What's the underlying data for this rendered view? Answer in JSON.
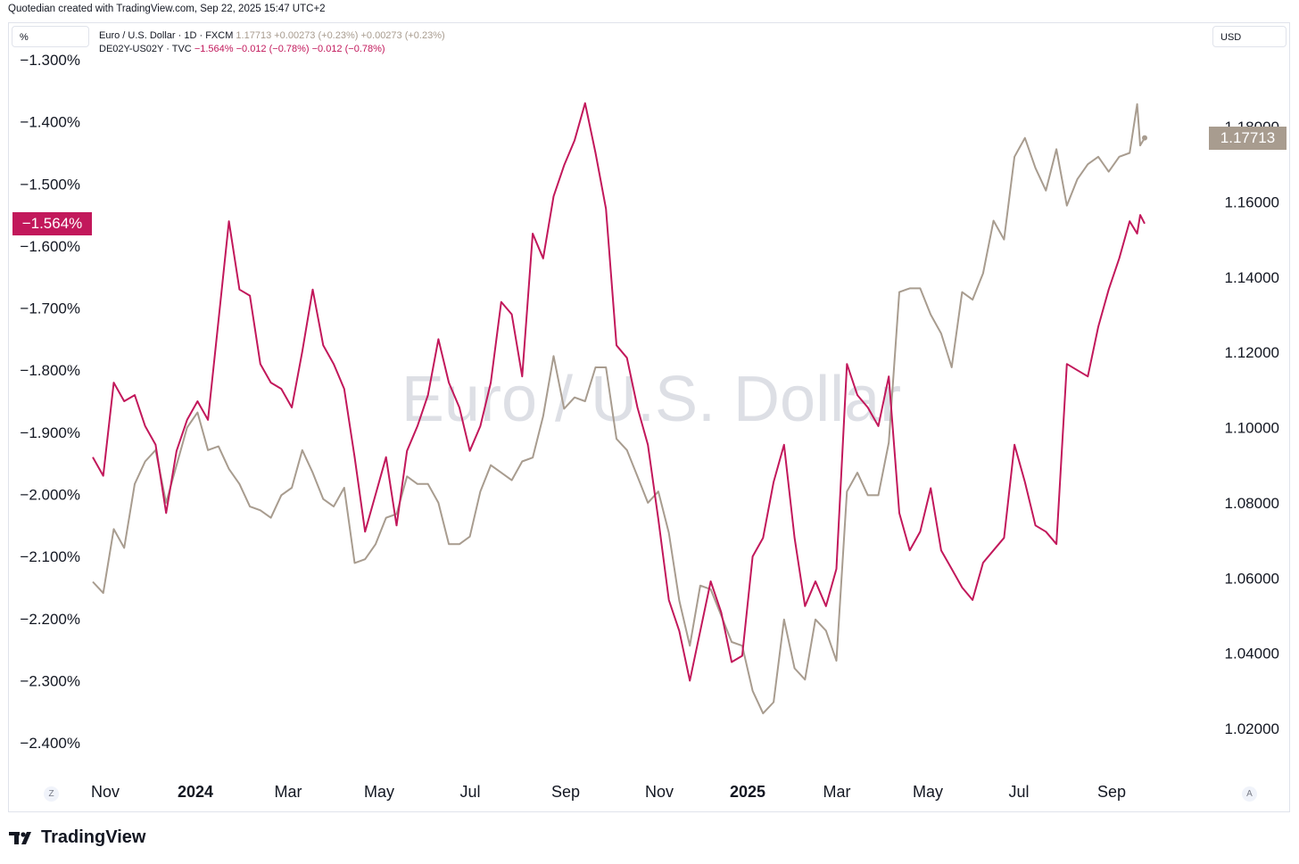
{
  "header": {
    "text": "Quotedian created with TradingView.com, Sep 22, 2025 15:47 UTC+2"
  },
  "left_scale_button": "%",
  "right_scale_button": "USD",
  "legend": {
    "eur": {
      "name": "Euro / U.S. Dollar · 1D · FXCM",
      "values": "1.17713  +0.00273 (+0.23%)  +0.00273 (+0.23%)"
    },
    "spread": {
      "name": "DE02Y-US02Y · TVC",
      "values": "−1.564%  −0.012 (−0.78%)  −0.012 (−0.78%)"
    }
  },
  "watermark": "Euro / U.S. Dollar",
  "corner_left": "Z",
  "corner_right": "A",
  "brand": {
    "name": "TradingView"
  },
  "colors": {
    "eurusd": "#a89c8f",
    "spread": "#c2185b",
    "grid": "#f0f3fa"
  },
  "chart_data": {
    "type": "line",
    "x_labels": [
      "Nov",
      "2024",
      "Mar",
      "May",
      "Jul",
      "Sep",
      "Nov",
      "2025",
      "Mar",
      "May",
      "Jul",
      "Sep"
    ],
    "x_labels_bold": [
      "2024",
      "2025"
    ],
    "left_axis": {
      "unit": "%",
      "ticks": [
        "−1.300%",
        "−1.400%",
        "−1.500%",
        "−1.600%",
        "−1.700%",
        "−1.800%",
        "−1.900%",
        "−2.000%",
        "−2.100%",
        "−2.200%",
        "−2.300%",
        "−2.400%"
      ],
      "range": [
        -2.4,
        -1.3
      ]
    },
    "right_axis": {
      "unit": "USD",
      "ticks": [
        "1.18000",
        "1.16000",
        "1.14000",
        "1.12000",
        "1.10000",
        "1.08000",
        "1.06000",
        "1.04000",
        "1.02000"
      ],
      "range": [
        1.02,
        1.18
      ]
    },
    "series": [
      {
        "name": "Euro / U.S. Dollar",
        "axis": "right",
        "last_label": "1.17713",
        "points": [
          [
            "2023-10-20",
            1.059
          ],
          [
            "2023-10-27",
            1.056
          ],
          [
            "2023-11-03",
            1.073
          ],
          [
            "2023-11-10",
            1.068
          ],
          [
            "2023-11-17",
            1.085
          ],
          [
            "2023-11-24",
            1.091
          ],
          [
            "2023-12-01",
            1.094
          ],
          [
            "2023-12-08",
            1.08
          ],
          [
            "2023-12-15",
            1.09
          ],
          [
            "2023-12-22",
            1.1
          ],
          [
            "2023-12-29",
            1.104
          ],
          [
            "2024-01-05",
            1.094
          ],
          [
            "2024-01-12",
            1.095
          ],
          [
            "2024-01-19",
            1.089
          ],
          [
            "2024-01-26",
            1.085
          ],
          [
            "2024-02-02",
            1.079
          ],
          [
            "2024-02-09",
            1.078
          ],
          [
            "2024-02-16",
            1.076
          ],
          [
            "2024-02-23",
            1.082
          ],
          [
            "2024-03-01",
            1.084
          ],
          [
            "2024-03-08",
            1.094
          ],
          [
            "2024-03-15",
            1.088
          ],
          [
            "2024-03-22",
            1.081
          ],
          [
            "2024-03-29",
            1.079
          ],
          [
            "2024-04-05",
            1.084
          ],
          [
            "2024-04-12",
            1.064
          ],
          [
            "2024-04-19",
            1.065
          ],
          [
            "2024-04-26",
            1.069
          ],
          [
            "2024-05-03",
            1.076
          ],
          [
            "2024-05-10",
            1.077
          ],
          [
            "2024-05-17",
            1.087
          ],
          [
            "2024-05-24",
            1.085
          ],
          [
            "2024-05-31",
            1.085
          ],
          [
            "2024-06-07",
            1.08
          ],
          [
            "2024-06-14",
            1.069
          ],
          [
            "2024-06-21",
            1.069
          ],
          [
            "2024-06-28",
            1.071
          ],
          [
            "2024-07-05",
            1.083
          ],
          [
            "2024-07-12",
            1.09
          ],
          [
            "2024-07-19",
            1.088
          ],
          [
            "2024-07-26",
            1.086
          ],
          [
            "2024-08-02",
            1.091
          ],
          [
            "2024-08-09",
            1.092
          ],
          [
            "2024-08-16",
            1.103
          ],
          [
            "2024-08-23",
            1.119
          ],
          [
            "2024-08-30",
            1.105
          ],
          [
            "2024-09-06",
            1.108
          ],
          [
            "2024-09-13",
            1.107
          ],
          [
            "2024-09-20",
            1.116
          ],
          [
            "2024-09-27",
            1.116
          ],
          [
            "2024-10-04",
            1.097
          ],
          [
            "2024-10-11",
            1.094
          ],
          [
            "2024-10-18",
            1.087
          ],
          [
            "2024-10-25",
            1.08
          ],
          [
            "2024-11-01",
            1.083
          ],
          [
            "2024-11-08",
            1.072
          ],
          [
            "2024-11-15",
            1.054
          ],
          [
            "2024-11-22",
            1.042
          ],
          [
            "2024-11-29",
            1.058
          ],
          [
            "2024-12-06",
            1.057
          ],
          [
            "2024-12-13",
            1.05
          ],
          [
            "2024-12-20",
            1.043
          ],
          [
            "2024-12-27",
            1.042
          ],
          [
            "2025-01-03",
            1.03
          ],
          [
            "2025-01-10",
            1.024
          ],
          [
            "2025-01-17",
            1.027
          ],
          [
            "2025-01-24",
            1.049
          ],
          [
            "2025-01-31",
            1.036
          ],
          [
            "2025-02-07",
            1.033
          ],
          [
            "2025-02-14",
            1.049
          ],
          [
            "2025-02-21",
            1.046
          ],
          [
            "2025-02-28",
            1.038
          ],
          [
            "2025-03-07",
            1.083
          ],
          [
            "2025-03-14",
            1.088
          ],
          [
            "2025-03-21",
            1.082
          ],
          [
            "2025-03-28",
            1.082
          ],
          [
            "2025-04-04",
            1.096
          ],
          [
            "2025-04-11",
            1.136
          ],
          [
            "2025-04-18",
            1.137
          ],
          [
            "2025-04-25",
            1.137
          ],
          [
            "2025-05-02",
            1.13
          ],
          [
            "2025-05-09",
            1.125
          ],
          [
            "2025-05-16",
            1.116
          ],
          [
            "2025-05-23",
            1.136
          ],
          [
            "2025-05-30",
            1.134
          ],
          [
            "2025-06-06",
            1.141
          ],
          [
            "2025-06-13",
            1.155
          ],
          [
            "2025-06-20",
            1.15
          ],
          [
            "2025-06-27",
            1.172
          ],
          [
            "2025-07-04",
            1.177
          ],
          [
            "2025-07-11",
            1.169
          ],
          [
            "2025-07-18",
            1.163
          ],
          [
            "2025-07-25",
            1.174
          ],
          [
            "2025-08-01",
            1.159
          ],
          [
            "2025-08-08",
            1.166
          ],
          [
            "2025-08-15",
            1.17
          ],
          [
            "2025-08-22",
            1.172
          ],
          [
            "2025-08-29",
            1.168
          ],
          [
            "2025-09-05",
            1.172
          ],
          [
            "2025-09-12",
            1.173
          ],
          [
            "2025-09-17",
            1.186
          ],
          [
            "2025-09-19",
            1.175
          ],
          [
            "2025-09-22",
            1.177
          ]
        ]
      },
      {
        "name": "DE02Y-US02Y",
        "axis": "left",
        "last_label": "−1.564%",
        "points": [
          [
            "2023-10-20",
            -1.94
          ],
          [
            "2023-10-27",
            -1.97
          ],
          [
            "2023-11-03",
            -1.82
          ],
          [
            "2023-11-10",
            -1.85
          ],
          [
            "2023-11-17",
            -1.84
          ],
          [
            "2023-11-24",
            -1.89
          ],
          [
            "2023-12-01",
            -1.92
          ],
          [
            "2023-12-08",
            -2.03
          ],
          [
            "2023-12-15",
            -1.93
          ],
          [
            "2023-12-22",
            -1.88
          ],
          [
            "2023-12-29",
            -1.85
          ],
          [
            "2024-01-05",
            -1.88
          ],
          [
            "2024-01-12",
            -1.72
          ],
          [
            "2024-01-19",
            -1.56
          ],
          [
            "2024-01-26",
            -1.67
          ],
          [
            "2024-02-02",
            -1.68
          ],
          [
            "2024-02-09",
            -1.79
          ],
          [
            "2024-02-16",
            -1.82
          ],
          [
            "2024-02-23",
            -1.83
          ],
          [
            "2024-03-01",
            -1.86
          ],
          [
            "2024-03-08",
            -1.77
          ],
          [
            "2024-03-15",
            -1.67
          ],
          [
            "2024-03-22",
            -1.76
          ],
          [
            "2024-03-29",
            -1.79
          ],
          [
            "2024-04-05",
            -1.83
          ],
          [
            "2024-04-12",
            -1.94
          ],
          [
            "2024-04-19",
            -2.06
          ],
          [
            "2024-04-26",
            -2.0
          ],
          [
            "2024-05-03",
            -1.94
          ],
          [
            "2024-05-10",
            -2.05
          ],
          [
            "2024-05-17",
            -1.93
          ],
          [
            "2024-05-24",
            -1.89
          ],
          [
            "2024-05-31",
            -1.84
          ],
          [
            "2024-06-07",
            -1.75
          ],
          [
            "2024-06-14",
            -1.82
          ],
          [
            "2024-06-21",
            -1.86
          ],
          [
            "2024-06-28",
            -1.93
          ],
          [
            "2024-07-05",
            -1.89
          ],
          [
            "2024-07-12",
            -1.82
          ],
          [
            "2024-07-19",
            -1.69
          ],
          [
            "2024-07-26",
            -1.71
          ],
          [
            "2024-08-02",
            -1.81
          ],
          [
            "2024-08-09",
            -1.58
          ],
          [
            "2024-08-16",
            -1.62
          ],
          [
            "2024-08-23",
            -1.52
          ],
          [
            "2024-08-30",
            -1.47
          ],
          [
            "2024-09-06",
            -1.43
          ],
          [
            "2024-09-13",
            -1.37
          ],
          [
            "2024-09-20",
            -1.45
          ],
          [
            "2024-09-27",
            -1.54
          ],
          [
            "2024-10-04",
            -1.76
          ],
          [
            "2024-10-11",
            -1.78
          ],
          [
            "2024-10-18",
            -1.86
          ],
          [
            "2024-10-25",
            -1.92
          ],
          [
            "2024-11-01",
            -2.04
          ],
          [
            "2024-11-08",
            -2.17
          ],
          [
            "2024-11-15",
            -2.22
          ],
          [
            "2024-11-22",
            -2.3
          ],
          [
            "2024-11-29",
            -2.22
          ],
          [
            "2024-12-06",
            -2.14
          ],
          [
            "2024-12-13",
            -2.19
          ],
          [
            "2024-12-20",
            -2.27
          ],
          [
            "2024-12-27",
            -2.26
          ],
          [
            "2025-01-03",
            -2.1
          ],
          [
            "2025-01-10",
            -2.07
          ],
          [
            "2025-01-17",
            -1.98
          ],
          [
            "2025-01-24",
            -1.92
          ],
          [
            "2025-01-31",
            -2.07
          ],
          [
            "2025-02-07",
            -2.18
          ],
          [
            "2025-02-14",
            -2.14
          ],
          [
            "2025-02-21",
            -2.18
          ],
          [
            "2025-02-28",
            -2.12
          ],
          [
            "2025-03-07",
            -1.79
          ],
          [
            "2025-03-14",
            -1.84
          ],
          [
            "2025-03-21",
            -1.86
          ],
          [
            "2025-03-28",
            -1.89
          ],
          [
            "2025-04-04",
            -1.81
          ],
          [
            "2025-04-11",
            -2.03
          ],
          [
            "2025-04-18",
            -2.09
          ],
          [
            "2025-04-25",
            -2.06
          ],
          [
            "2025-05-02",
            -1.99
          ],
          [
            "2025-05-09",
            -2.09
          ],
          [
            "2025-05-16",
            -2.12
          ],
          [
            "2025-05-23",
            -2.15
          ],
          [
            "2025-05-30",
            -2.17
          ],
          [
            "2025-06-06",
            -2.11
          ],
          [
            "2025-06-13",
            -2.09
          ],
          [
            "2025-06-20",
            -2.07
          ],
          [
            "2025-06-27",
            -1.92
          ],
          [
            "2025-07-04",
            -1.98
          ],
          [
            "2025-07-11",
            -2.05
          ],
          [
            "2025-07-18",
            -2.06
          ],
          [
            "2025-07-25",
            -2.08
          ],
          [
            "2025-08-01",
            -1.79
          ],
          [
            "2025-08-08",
            -1.8
          ],
          [
            "2025-08-15",
            -1.81
          ],
          [
            "2025-08-22",
            -1.73
          ],
          [
            "2025-08-29",
            -1.67
          ],
          [
            "2025-09-05",
            -1.62
          ],
          [
            "2025-09-12",
            -1.56
          ],
          [
            "2025-09-17",
            -1.58
          ],
          [
            "2025-09-19",
            -1.55
          ],
          [
            "2025-09-22",
            -1.564
          ]
        ]
      }
    ]
  }
}
